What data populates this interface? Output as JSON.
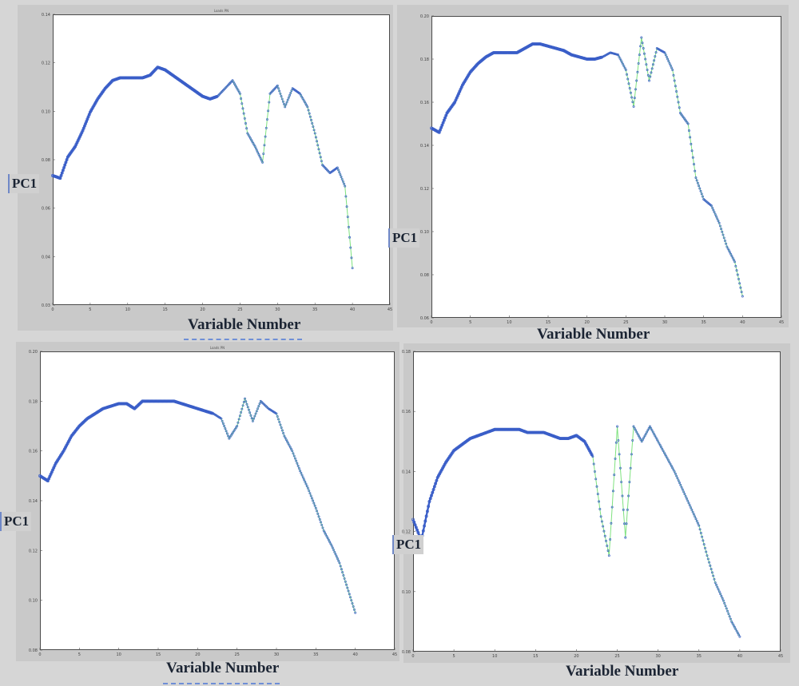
{
  "colors": {
    "blue": "#3a5ec8",
    "green": "#7fe27f"
  },
  "charts": [
    {
      "title": "Loads PN",
      "xlabel": "Variable Number",
      "ylabel": "PC1",
      "xticks": [
        "0",
        "5",
        "10",
        "15",
        "20",
        "25",
        "30",
        "35",
        "40",
        "45"
      ],
      "yticks": [
        "0.03",
        "0.04",
        "0.06",
        "0.08",
        "0.10",
        "0.12",
        "0.14"
      ],
      "ylim": [
        0.03,
        0.14
      ]
    },
    {
      "title": "",
      "xlabel": "Variable Number",
      "ylabel": "PC1",
      "xticks": [
        "0",
        "5",
        "10",
        "15",
        "20",
        "25",
        "30",
        "35",
        "40",
        "45"
      ],
      "yticks": [
        "0.06",
        "0.08",
        "0.10",
        "0.12",
        "0.14",
        "0.16",
        "0.18",
        "0.20"
      ],
      "ylim": [
        0.06,
        0.2
      ]
    },
    {
      "title": "Loads PN",
      "xlabel": "Variable Number",
      "ylabel": "PC1",
      "xticks": [
        "0",
        "5",
        "10",
        "15",
        "20",
        "25",
        "30",
        "35",
        "40",
        "45"
      ],
      "yticks": [
        "0.08",
        "0.10",
        "0.12",
        "0.14",
        "0.16",
        "0.18",
        "0.20"
      ],
      "ylim": [
        0.08,
        0.2
      ]
    },
    {
      "title": "",
      "xlabel": "Variable Number",
      "ylabel": "PC1",
      "xticks": [
        "0",
        "5",
        "10",
        "15",
        "20",
        "25",
        "30",
        "35",
        "40",
        "45"
      ],
      "yticks": [
        "0.08",
        "0.10",
        "0.12",
        "0.14",
        "0.16",
        "0.18"
      ],
      "ylim": [
        0.08,
        0.18
      ]
    }
  ],
  "chart_data": [
    {
      "type": "line",
      "title": "Loads PN",
      "xlabel": "Variable Number",
      "ylabel": "PC1",
      "xlim": [
        0,
        45
      ],
      "ylim": [
        0.03,
        0.14
      ],
      "series": [
        {
          "x": [
            0,
            1,
            2,
            3,
            4,
            5,
            6,
            7,
            8,
            9,
            10,
            11,
            12,
            13,
            14,
            15,
            16,
            17,
            18,
            19,
            20,
            21,
            22,
            23,
            24,
            25,
            26,
            27,
            28,
            29,
            30,
            31,
            32,
            33,
            34,
            35,
            36,
            37,
            38,
            39,
            40
          ],
          "values": [
            0.079,
            0.078,
            0.086,
            0.09,
            0.096,
            0.103,
            0.108,
            0.112,
            0.115,
            0.116,
            0.116,
            0.116,
            0.116,
            0.117,
            0.12,
            0.119,
            0.117,
            0.115,
            0.113,
            0.111,
            0.109,
            0.108,
            0.109,
            0.112,
            0.115,
            0.11,
            0.095,
            0.09,
            0.084,
            0.11,
            0.113,
            0.105,
            0.112,
            0.11,
            0.105,
            0.095,
            0.083,
            0.08,
            0.082,
            0.075,
            0.044
          ]
        }
      ]
    },
    {
      "type": "line",
      "title": "",
      "xlabel": "Variable Number",
      "ylabel": "PC1",
      "xlim": [
        0,
        45
      ],
      "ylim": [
        0.06,
        0.2
      ],
      "series": [
        {
          "x": [
            0,
            1,
            2,
            3,
            4,
            5,
            6,
            7,
            8,
            9,
            10,
            11,
            12,
            13,
            14,
            15,
            16,
            17,
            18,
            19,
            20,
            21,
            22,
            23,
            24,
            25,
            26,
            27,
            28,
            29,
            30,
            31,
            32,
            33,
            34,
            35,
            36,
            37,
            38,
            39,
            40
          ],
          "values": [
            0.148,
            0.146,
            0.155,
            0.16,
            0.168,
            0.174,
            0.178,
            0.181,
            0.183,
            0.183,
            0.183,
            0.183,
            0.185,
            0.187,
            0.187,
            0.186,
            0.185,
            0.184,
            0.182,
            0.181,
            0.18,
            0.18,
            0.181,
            0.183,
            0.182,
            0.175,
            0.158,
            0.19,
            0.17,
            0.185,
            0.183,
            0.175,
            0.155,
            0.15,
            0.125,
            0.115,
            0.112,
            0.104,
            0.093,
            0.086,
            0.07
          ]
        }
      ]
    },
    {
      "type": "line",
      "title": "Loads PN",
      "xlabel": "Variable Number",
      "ylabel": "PC1",
      "xlim": [
        0,
        45
      ],
      "ylim": [
        0.08,
        0.2
      ],
      "series": [
        {
          "x": [
            0,
            1,
            2,
            3,
            4,
            5,
            6,
            7,
            8,
            9,
            10,
            11,
            12,
            13,
            14,
            15,
            16,
            17,
            18,
            19,
            20,
            21,
            22,
            23,
            24,
            25,
            26,
            27,
            28,
            29,
            30,
            31,
            32,
            33,
            34,
            35,
            36,
            37,
            38,
            39,
            40
          ],
          "values": [
            0.15,
            0.148,
            0.155,
            0.16,
            0.166,
            0.17,
            0.173,
            0.175,
            0.177,
            0.178,
            0.179,
            0.179,
            0.177,
            0.18,
            0.18,
            0.18,
            0.18,
            0.18,
            0.179,
            0.178,
            0.177,
            0.176,
            0.175,
            0.173,
            0.165,
            0.17,
            0.181,
            0.172,
            0.18,
            0.177,
            0.175,
            0.166,
            0.16,
            0.152,
            0.145,
            0.137,
            0.128,
            0.122,
            0.115,
            0.105,
            0.095
          ]
        }
      ]
    },
    {
      "type": "line",
      "title": "",
      "xlabel": "Variable Number",
      "ylabel": "PC1",
      "xlim": [
        0,
        45
      ],
      "ylim": [
        0.08,
        0.18
      ],
      "series": [
        {
          "x": [
            0,
            1,
            2,
            3,
            4,
            5,
            6,
            7,
            8,
            9,
            10,
            11,
            12,
            13,
            14,
            15,
            16,
            17,
            18,
            19,
            20,
            21,
            22,
            23,
            24,
            25,
            26,
            27,
            28,
            29,
            30,
            31,
            32,
            33,
            34,
            35,
            36,
            37,
            38,
            39,
            40
          ],
          "values": [
            0.124,
            0.117,
            0.13,
            0.138,
            0.143,
            0.147,
            0.149,
            0.151,
            0.152,
            0.153,
            0.154,
            0.154,
            0.154,
            0.154,
            0.153,
            0.153,
            0.153,
            0.152,
            0.151,
            0.151,
            0.152,
            0.15,
            0.145,
            0.125,
            0.112,
            0.155,
            0.118,
            0.155,
            0.15,
            0.155,
            0.15,
            0.145,
            0.14,
            0.134,
            0.128,
            0.122,
            0.112,
            0.103,
            0.097,
            0.09,
            0.085
          ]
        }
      ]
    }
  ]
}
